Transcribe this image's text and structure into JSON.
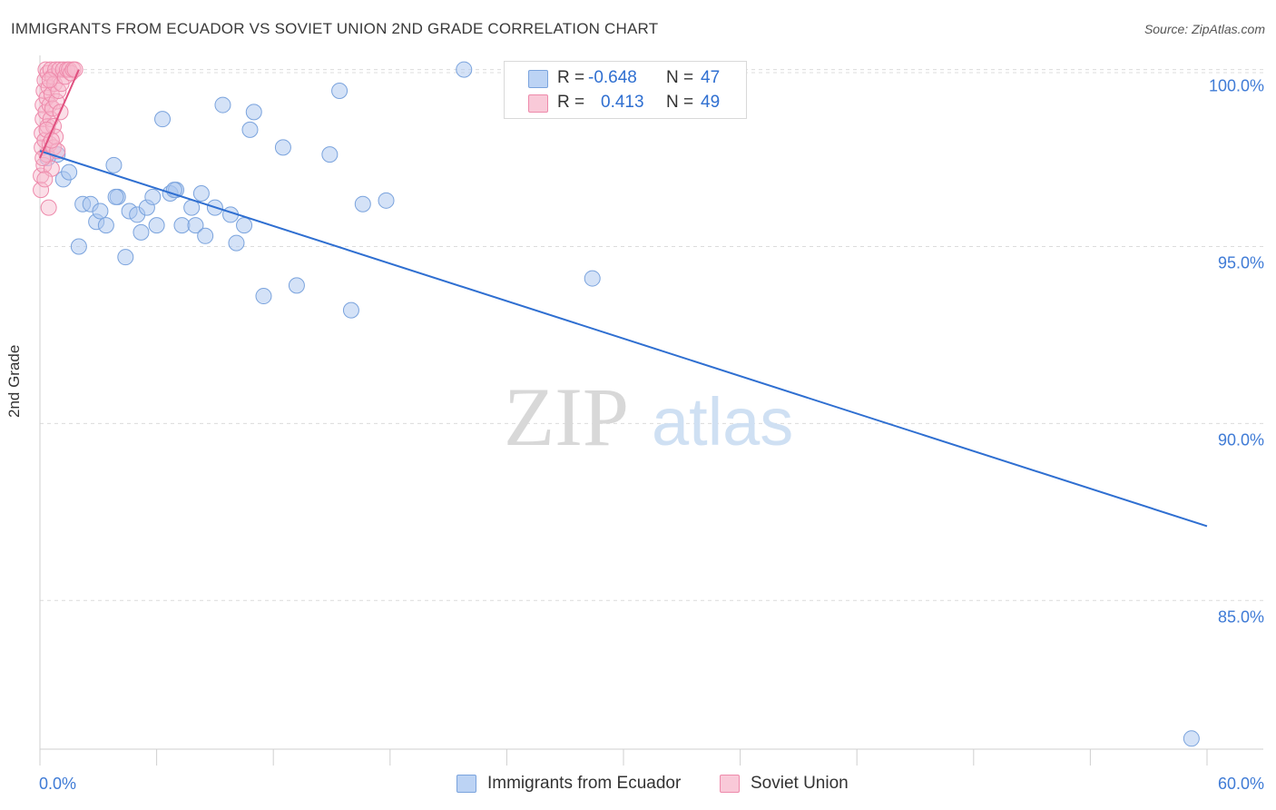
{
  "title": "IMMIGRANTS FROM ECUADOR VS SOVIET UNION 2ND GRADE CORRELATION CHART",
  "source": "Source: ZipAtlas.com",
  "watermark": {
    "zip": "ZIP",
    "atlas": "atlas"
  },
  "legend": {
    "series1": {
      "r_label": "R =",
      "r_value": "-0.648",
      "n_label": "N =",
      "n_value": "47"
    },
    "series2": {
      "r_label": "R =",
      "r_value": "0.413",
      "n_label": "N =",
      "n_value": "49"
    }
  },
  "chart_data": {
    "type": "scatter",
    "title": "IMMIGRANTS FROM ECUADOR VS SOVIET UNION 2ND GRADE CORRELATION CHART",
    "xlabel": "",
    "ylabel": "2nd Grade",
    "xlim": [
      0,
      60
    ],
    "ylim": [
      80.8,
      100.4
    ],
    "x_tick_labels": [
      "0.0%",
      "60.0%"
    ],
    "y_ticks": [
      {
        "value": 85,
        "label": "85.0%"
      },
      {
        "value": 90,
        "label": "90.0%"
      },
      {
        "value": 95,
        "label": "95.0%"
      },
      {
        "value": 100,
        "label": "100.0%"
      }
    ],
    "grid": "horizontal-dashed",
    "legend_position": "bottom",
    "series": [
      {
        "name": "Immigrants from Ecuador",
        "color": "#a9c6f0",
        "edge": "#7aa3dd",
        "trend_color": "#2f6fd1",
        "trend": {
          "x": [
            0,
            60
          ],
          "y": [
            97.7,
            87.1
          ]
        },
        "points": [
          [
            0.9,
            97.6
          ],
          [
            1.2,
            96.9
          ],
          [
            1.5,
            97.1
          ],
          [
            2.0,
            95.0
          ],
          [
            2.2,
            96.2
          ],
          [
            2.6,
            96.2
          ],
          [
            2.9,
            95.7
          ],
          [
            3.1,
            96.0
          ],
          [
            3.4,
            95.6
          ],
          [
            3.8,
            97.3
          ],
          [
            4.0,
            96.4
          ],
          [
            4.4,
            94.7
          ],
          [
            4.6,
            96.0
          ],
          [
            5.0,
            95.9
          ],
          [
            5.2,
            95.4
          ],
          [
            5.5,
            96.1
          ],
          [
            5.8,
            96.4
          ],
          [
            6.0,
            95.6
          ],
          [
            6.3,
            98.6
          ],
          [
            6.7,
            96.5
          ],
          [
            7.0,
            96.6
          ],
          [
            7.3,
            95.6
          ],
          [
            7.8,
            96.1
          ],
          [
            8.0,
            95.6
          ],
          [
            8.3,
            96.5
          ],
          [
            8.5,
            95.3
          ],
          [
            9.0,
            96.1
          ],
          [
            9.4,
            99.0
          ],
          [
            9.8,
            95.9
          ],
          [
            10.1,
            95.1
          ],
          [
            10.5,
            95.6
          ],
          [
            10.8,
            98.3
          ],
          [
            11.0,
            98.8
          ],
          [
            11.5,
            93.6
          ],
          [
            12.5,
            97.8
          ],
          [
            13.2,
            93.9
          ],
          [
            14.9,
            97.6
          ],
          [
            15.4,
            99.4
          ],
          [
            16.0,
            93.2
          ],
          [
            16.6,
            96.2
          ],
          [
            17.8,
            96.3
          ],
          [
            21.8,
            100.0
          ],
          [
            28.4,
            94.1
          ],
          [
            59.2,
            81.1
          ],
          [
            0.4,
            97.5
          ],
          [
            3.9,
            96.4
          ],
          [
            6.9,
            96.6
          ]
        ]
      },
      {
        "name": "Soviet Union",
        "color": "#f7b8cc",
        "edge": "#ee8aab",
        "trend_color": "#e0507f",
        "trend": {
          "x": [
            0,
            2.0
          ],
          "y": [
            97.5,
            100.0
          ]
        },
        "points": [
          [
            0.05,
            97.0
          ],
          [
            0.05,
            96.6
          ],
          [
            0.1,
            97.8
          ],
          [
            0.1,
            98.2
          ],
          [
            0.15,
            98.6
          ],
          [
            0.15,
            99.0
          ],
          [
            0.2,
            99.4
          ],
          [
            0.2,
            97.3
          ],
          [
            0.25,
            99.7
          ],
          [
            0.25,
            98.0
          ],
          [
            0.3,
            100.0
          ],
          [
            0.3,
            98.8
          ],
          [
            0.35,
            99.2
          ],
          [
            0.35,
            97.6
          ],
          [
            0.4,
            99.9
          ],
          [
            0.4,
            98.4
          ],
          [
            0.45,
            96.1
          ],
          [
            0.45,
            99.5
          ],
          [
            0.5,
            97.9
          ],
          [
            0.5,
            99.0
          ],
          [
            0.55,
            100.0
          ],
          [
            0.55,
            98.6
          ],
          [
            0.6,
            99.3
          ],
          [
            0.6,
            97.2
          ],
          [
            0.65,
            98.9
          ],
          [
            0.65,
            99.8
          ],
          [
            0.7,
            97.8
          ],
          [
            0.7,
            98.4
          ],
          [
            0.75,
            99.6
          ],
          [
            0.8,
            100.0
          ],
          [
            0.8,
            98.1
          ],
          [
            0.85,
            99.1
          ],
          [
            0.9,
            97.7
          ],
          [
            0.95,
            99.4
          ],
          [
            1.0,
            100.0
          ],
          [
            1.05,
            98.8
          ],
          [
            1.1,
            99.6
          ],
          [
            1.2,
            100.0
          ],
          [
            1.3,
            99.8
          ],
          [
            1.4,
            100.0
          ],
          [
            1.5,
            100.0
          ],
          [
            1.6,
            99.9
          ],
          [
            1.7,
            100.0
          ],
          [
            1.8,
            100.0
          ],
          [
            0.15,
            97.5
          ],
          [
            0.25,
            96.9
          ],
          [
            0.35,
            98.3
          ],
          [
            0.5,
            99.7
          ],
          [
            0.6,
            98.0
          ]
        ]
      }
    ]
  }
}
